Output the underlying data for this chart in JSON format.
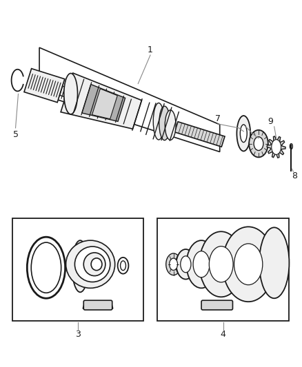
{
  "bg_color": "#ffffff",
  "line_color": "#1a1a1a",
  "dark_gray": "#555555",
  "mid_gray": "#888888",
  "light_gray": "#cccccc",
  "fill_light": "#f0f0f0",
  "fill_mid": "#d8d8d8",
  "fill_dark": "#b0b0b0",
  "fig_width": 4.38,
  "fig_height": 5.33,
  "dpi": 100
}
